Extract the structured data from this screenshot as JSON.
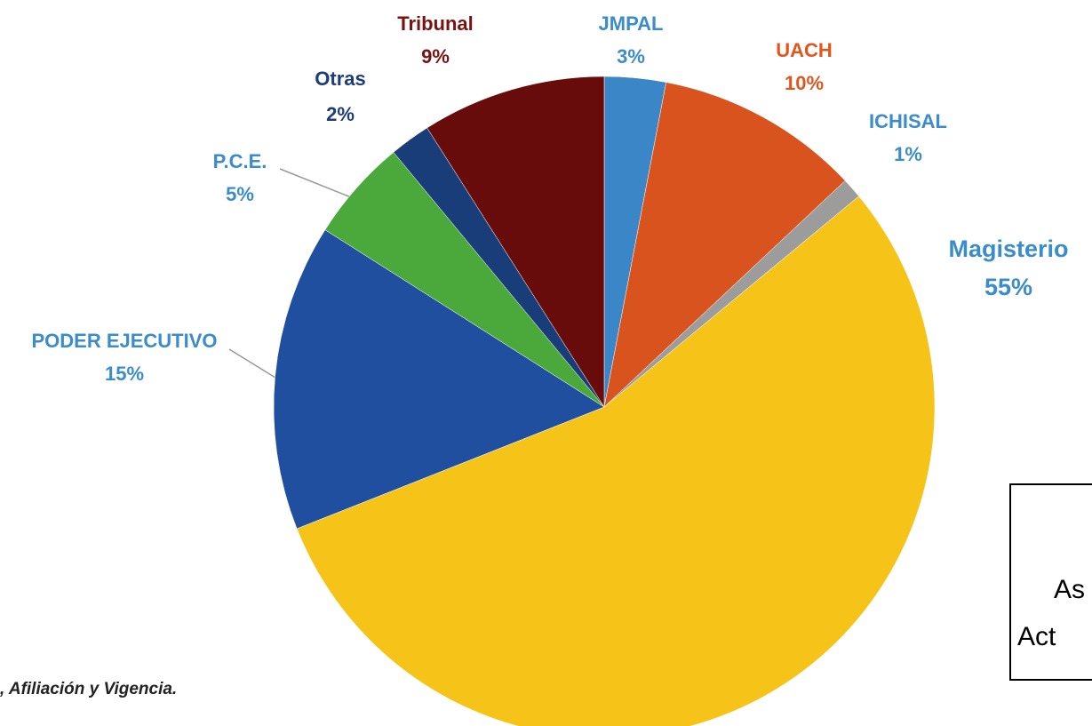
{
  "chart_data": {
    "type": "pie",
    "categories": [
      "JMPAL",
      "UACH",
      "ICHISAL",
      "Magisterio",
      "PODER EJECUTIVO",
      "P.C.E.",
      "Otras",
      "Tribunal"
    ],
    "values": [
      3,
      10,
      1,
      55,
      15,
      5,
      2,
      9
    ],
    "value_labels": [
      "3%",
      "10%",
      "1%",
      "55%",
      "15%",
      "5%",
      "2%",
      "9%"
    ],
    "colors": [
      "#3a86c6",
      "#d9531e",
      "#9c9c9c",
      "#f6c419",
      "#1f4f9e",
      "#4ba83b",
      "#183d78",
      "#680b0b"
    ],
    "label_colors": [
      "#3a8ccb",
      "#e0561d",
      "#3a8ccb",
      "#3a8ccb",
      "#3a8ccb",
      "#3a8ccb",
      "#1d3d78",
      "#7a1212"
    ],
    "source": ", Afiliación y Vigencia.",
    "box_lines": [
      "As",
      "Act"
    ]
  }
}
